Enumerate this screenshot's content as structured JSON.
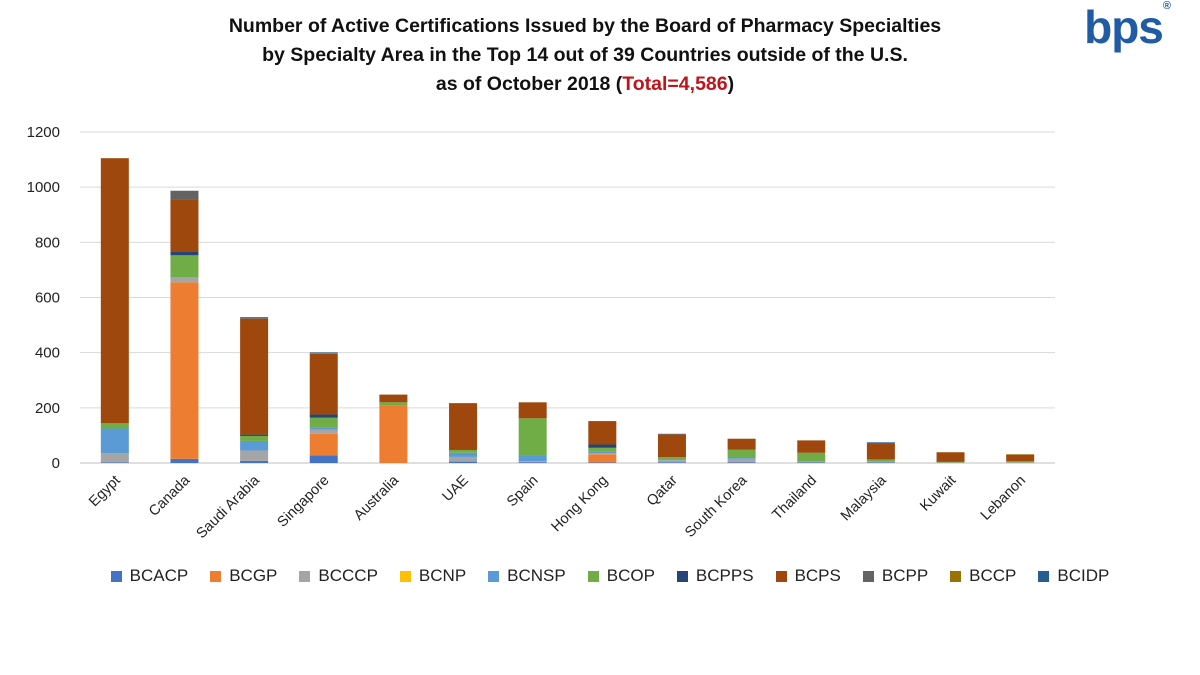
{
  "title": {
    "line1": "Number of Active Certifications Issued by the Board of Pharmacy Specialties",
    "line2": "by Specialty Area in the Top 14 out of 39 Countries outside of the U.S.",
    "line3_prefix": "as of October 2018 (",
    "line3_total": "Total=4,586",
    "line3_suffix": ")",
    "total_color": "#c0131a"
  },
  "logo": {
    "text": "bps",
    "mark": "®",
    "color": "#1f5ca3"
  },
  "chart_data": {
    "type": "bar",
    "stacked": true,
    "categories": [
      "Egypt",
      "Canada",
      "Saudi Arabia",
      "Singapore",
      "Australia",
      "UAE",
      "Spain",
      "Hong Kong",
      "Qatar",
      "South Korea",
      "Thailand",
      "Malaysia",
      "Kuwait",
      "Lebanon"
    ],
    "ylim": [
      0,
      1200
    ],
    "yticks": [
      0,
      200,
      400,
      600,
      800,
      1000,
      1200
    ],
    "grid": true,
    "legend_position": "bottom",
    "series": [
      {
        "name": "BCACP",
        "color": "#4472c4",
        "values": [
          2,
          15,
          8,
          28,
          0,
          5,
          3,
          2,
          2,
          3,
          2,
          2,
          0,
          0
        ]
      },
      {
        "name": "BCGP",
        "color": "#ed7d31",
        "values": [
          0,
          640,
          0,
          78,
          208,
          2,
          2,
          30,
          0,
          2,
          0,
          0,
          0,
          0
        ]
      },
      {
        "name": "BCCCP",
        "color": "#a5a5a5",
        "values": [
          33,
          18,
          37,
          15,
          0,
          15,
          2,
          3,
          8,
          10,
          3,
          3,
          2,
          2
        ]
      },
      {
        "name": "BCNP",
        "color": "#ffc000",
        "values": [
          0,
          0,
          0,
          0,
          0,
          0,
          0,
          0,
          0,
          0,
          0,
          0,
          0,
          0
        ]
      },
      {
        "name": "BCNSP",
        "color": "#5b9bd5",
        "values": [
          90,
          0,
          35,
          8,
          0,
          15,
          20,
          8,
          3,
          3,
          2,
          2,
          0,
          0
        ]
      },
      {
        "name": "BCOP",
        "color": "#70ad47",
        "values": [
          20,
          80,
          18,
          35,
          12,
          10,
          135,
          12,
          8,
          30,
          30,
          6,
          2,
          5
        ]
      },
      {
        "name": "BCPPS",
        "color": "#264478",
        "values": [
          0,
          12,
          5,
          12,
          0,
          0,
          0,
          12,
          0,
          0,
          0,
          0,
          0,
          0
        ]
      },
      {
        "name": "BCPS",
        "color": "#9e480e",
        "values": [
          960,
          190,
          420,
          220,
          28,
          170,
          58,
          85,
          82,
          40,
          45,
          58,
          35,
          23
        ]
      },
      {
        "name": "BCPP",
        "color": "#636363",
        "values": [
          0,
          32,
          6,
          2,
          0,
          0,
          0,
          0,
          3,
          0,
          0,
          0,
          0,
          0
        ]
      },
      {
        "name": "BCCP",
        "color": "#997300",
        "values": [
          0,
          0,
          0,
          0,
          0,
          0,
          0,
          0,
          0,
          0,
          0,
          0,
          0,
          2
        ]
      },
      {
        "name": "BCIDP",
        "color": "#255e91",
        "values": [
          0,
          0,
          0,
          3,
          0,
          0,
          0,
          0,
          0,
          0,
          0,
          4,
          0,
          0
        ]
      }
    ]
  }
}
